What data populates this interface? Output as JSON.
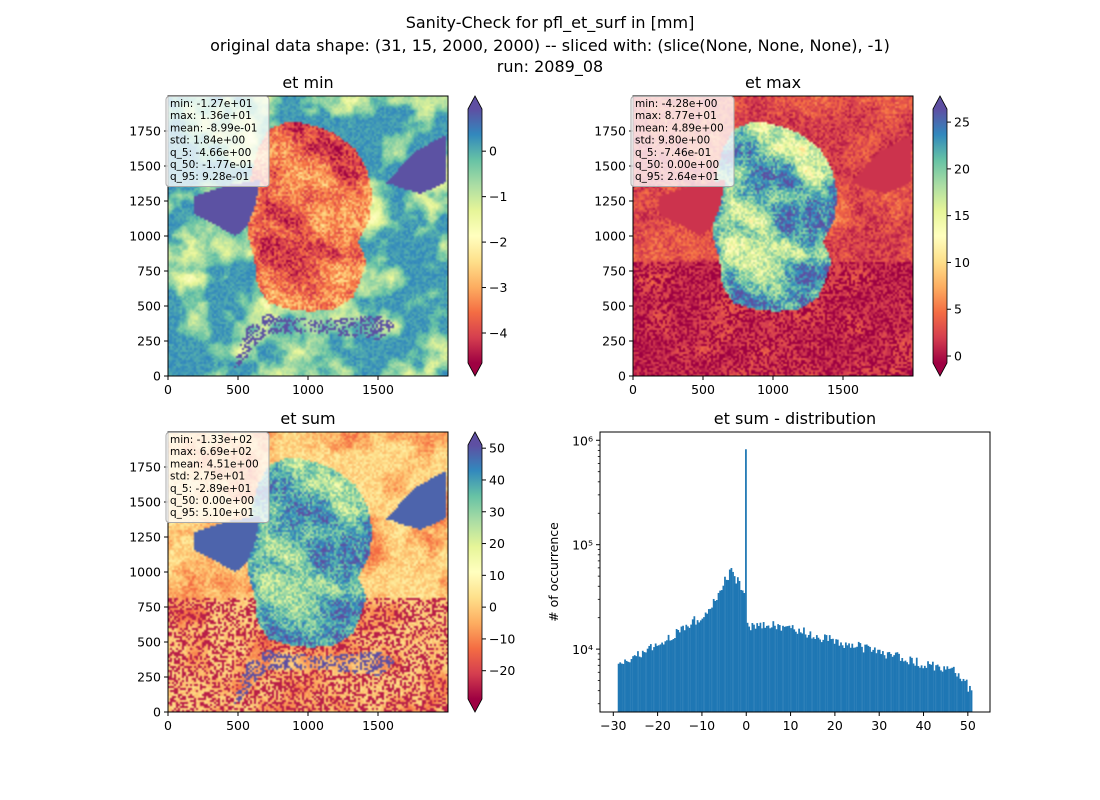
{
  "figure": {
    "title_lines": [
      "Sanity-Check for pfl_et_surf in [mm]",
      "original data shape: (31, 15, 2000, 2000) -- sliced with: (slice(None, None, None), -1)",
      "run: 2089_08"
    ]
  },
  "chart_data": [
    {
      "type": "heatmap",
      "title": "et min",
      "xlim": [
        0,
        2000
      ],
      "ylim": [
        0,
        2000
      ],
      "xticks": [
        0,
        500,
        1000,
        1500
      ],
      "yticks": [
        0,
        250,
        500,
        750,
        1000,
        1250,
        1500,
        1750
      ],
      "colormap": "Spectral",
      "colorbar": {
        "min": -4.66,
        "max": 0.928,
        "ticks": [
          -4,
          -3,
          -2,
          -1,
          0
        ],
        "extend": "both"
      },
      "stats": [
        "min: -1.27e+01",
        "max: 1.36e+01",
        "mean: -8.99e-01",
        "std: 1.84e+00",
        "q_5: -4.66e+00",
        "q_50: -1.77e-01",
        "q_95: 9.28e-01"
      ]
    },
    {
      "type": "heatmap",
      "title": "et max",
      "xlim": [
        0,
        2000
      ],
      "ylim": [
        0,
        2000
      ],
      "xticks": [
        0,
        500,
        1000,
        1500
      ],
      "yticks": [
        0,
        250,
        500,
        750,
        1000,
        1250,
        1500,
        1750
      ],
      "colormap": "Spectral",
      "colorbar": {
        "min": -0.746,
        "max": 26.4,
        "ticks": [
          0,
          5,
          10,
          15,
          20,
          25
        ],
        "extend": "both"
      },
      "stats": [
        "min: -4.28e+00",
        "max: 8.77e+01",
        "mean: 4.89e+00",
        "std: 9.80e+00",
        "q_5: -7.46e-01",
        "q_50: 0.00e+00",
        "q_95: 2.64e+01"
      ]
    },
    {
      "type": "heatmap",
      "title": "et sum",
      "xlim": [
        0,
        2000
      ],
      "ylim": [
        0,
        2000
      ],
      "xticks": [
        0,
        500,
        1000,
        1500
      ],
      "yticks": [
        0,
        250,
        500,
        750,
        1000,
        1250,
        1500,
        1750
      ],
      "colormap": "Spectral",
      "colorbar": {
        "min": -28.9,
        "max": 51.0,
        "ticks": [
          -20,
          -10,
          0,
          10,
          20,
          30,
          40,
          50
        ],
        "extend": "both"
      },
      "stats": [
        "min: -1.33e+02",
        "max: 6.69e+02",
        "mean: 4.51e+00",
        "std: 2.75e+01",
        "q_5: -2.89e+01",
        "q_50: 0.00e+00",
        "q_95: 5.10e+01"
      ]
    },
    {
      "type": "bar",
      "title": "et sum - distribution",
      "ylabel": "# of occurrence",
      "yscale": "log",
      "ylim": [
        2500,
        1200000
      ],
      "xlim": [
        -33,
        55
      ],
      "xticks": [
        -30,
        -20,
        -10,
        0,
        10,
        20,
        30,
        40,
        50
      ],
      "yticks": [
        {
          "value": 10000,
          "label": "10⁴"
        },
        {
          "value": 100000,
          "label": "10⁵"
        },
        {
          "value": 1000000,
          "label": "10⁶"
        }
      ],
      "color": "#1f77b4",
      "bin_range": [
        -29,
        51
      ],
      "bin_count": 220,
      "spike": {
        "x": 0,
        "value": 820000
      },
      "profile": [
        [
          -29,
          6500
        ],
        [
          -25,
          8500
        ],
        [
          -20,
          11000
        ],
        [
          -15,
          15000
        ],
        [
          -10,
          21000
        ],
        [
          -7,
          30000
        ],
        [
          -5,
          45000
        ],
        [
          -3.5,
          55000
        ],
        [
          -2,
          45000
        ],
        [
          -0.5,
          32000
        ],
        [
          0.5,
          17000
        ],
        [
          5,
          17000
        ],
        [
          10,
          16000
        ],
        [
          20,
          12000
        ],
        [
          30,
          9500
        ],
        [
          40,
          7200
        ],
        [
          48,
          6000
        ],
        [
          51,
          3800
        ]
      ]
    }
  ]
}
